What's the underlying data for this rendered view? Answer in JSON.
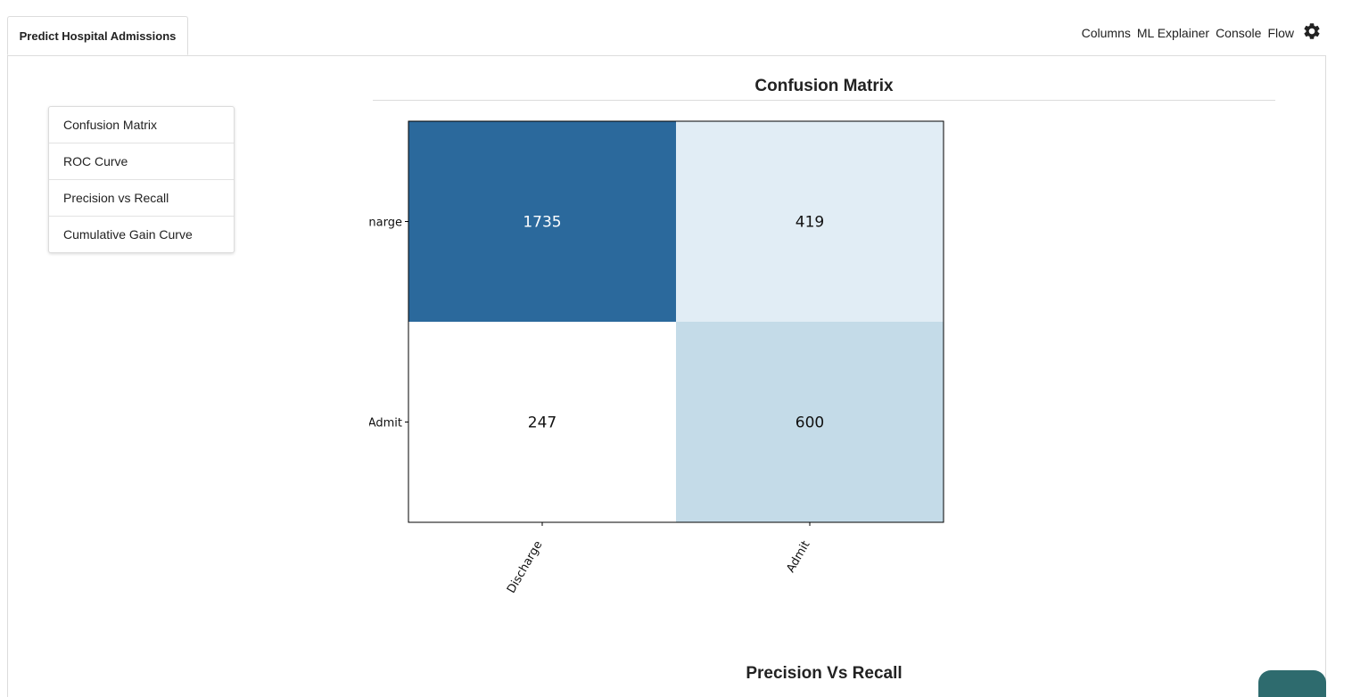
{
  "tab": {
    "label": "Predict Hospital Admissions"
  },
  "nav": {
    "links": [
      "Columns",
      "ML Explainer",
      "Console",
      "Flow"
    ],
    "settings_icon": "gear-icon"
  },
  "sidebar": {
    "items": [
      {
        "label": "Confusion Matrix"
      },
      {
        "label": "ROC Curve"
      },
      {
        "label": "Precision vs Recall"
      },
      {
        "label": "Cumulative Gain Curve"
      }
    ]
  },
  "sections": {
    "confusion_title": "Confusion Matrix",
    "pr_title": "Precision Vs Recall"
  },
  "colors": {
    "accent": "#2e6b6e",
    "cell_dark": "#2b699c",
    "cell_light": "#e1edf5",
    "cell_mid": "#c4dbe8",
    "cell_white": "#ffffff"
  },
  "chart_data": {
    "type": "heatmap",
    "title": "Confusion Matrix",
    "row_labels": [
      "Discharge",
      "Admit"
    ],
    "row_labels_visible": [
      "narge",
      "Admit"
    ],
    "col_labels": [
      "Discharge",
      "Admit"
    ],
    "values": [
      [
        1735,
        419
      ],
      [
        247,
        600
      ]
    ],
    "cell_colors": [
      [
        "#2b699c",
        "#e1edf5"
      ],
      [
        "#ffffff",
        "#c4dbe8"
      ]
    ],
    "text_colors": [
      [
        "#ffffff",
        "#111111"
      ],
      [
        "#111111",
        "#111111"
      ]
    ]
  }
}
